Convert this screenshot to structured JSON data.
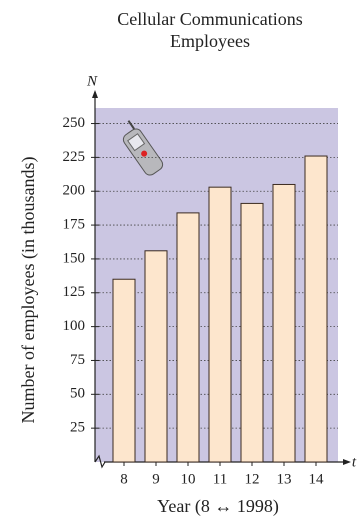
{
  "chart_data": {
    "type": "bar",
    "title": "Cellular Communications Employees",
    "x_label": "Year (8 ↔ 1998)",
    "y_label": "Number of employees (in thousands)",
    "x_axis_symbol": "t",
    "y_axis_symbol": "N",
    "categories": [
      "8",
      "9",
      "10",
      "11",
      "12",
      "13",
      "14"
    ],
    "values": [
      135,
      156,
      184,
      203,
      191,
      205,
      226
    ],
    "color": "#fde6cd",
    "ylim": [
      0,
      260
    ],
    "yticks": [
      25,
      50,
      75,
      100,
      125,
      150,
      175,
      200,
      225,
      250
    ],
    "grid": true
  }
}
